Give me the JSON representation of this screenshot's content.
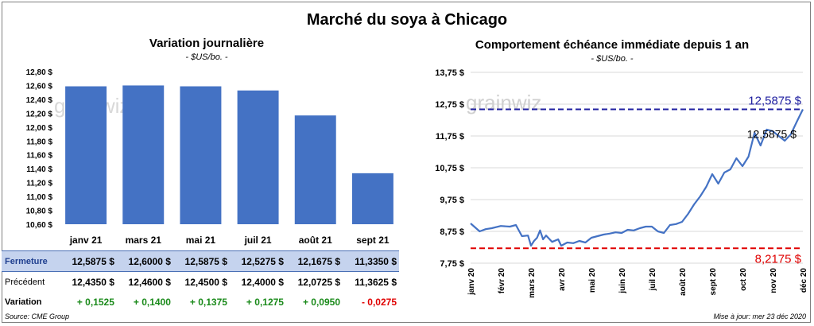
{
  "main_title": "Marché du soya à Chicago",
  "left_chart": {
    "title": "Variation  journalière",
    "subtitle": "- $US/bo. -",
    "watermark": "grainwiz"
  },
  "right_chart": {
    "title": "Comportement  échéance immédiate depuis 1 an",
    "subtitle": "- $US/bo. -",
    "watermark": "grainwiz"
  },
  "table": {
    "rows": [
      {
        "label": "Fermeture",
        "values": [
          "12,5875 $",
          "12,6000 $",
          "12,5875 $",
          "12,5275 $",
          "12,1675 $",
          "11,3350 $"
        ]
      },
      {
        "label": "Précédent",
        "values": [
          "12,4350 $",
          "12,4600 $",
          "12,4500 $",
          "12,4000 $",
          "12,0725 $",
          "11,3625 $"
        ]
      },
      {
        "label": "Variation",
        "values": [
          "+ 0,1525",
          "+ 0,1400",
          "+ 0,1375",
          "+ 0,1275",
          "+ 0,0950",
          "- 0,0275"
        ],
        "signs": [
          "pos",
          "pos",
          "pos",
          "pos",
          "pos",
          "neg"
        ]
      }
    ]
  },
  "footer": {
    "source": "Source: CME Group",
    "updated": "Mise à jour: mer 23 déc 2020"
  },
  "colors": {
    "bar": "#4472c4",
    "line": "#4472c4",
    "high_line": "#1f1fa0",
    "low_line": "#e00000",
    "positive": "#1a8a1a",
    "negative": "#e00000"
  },
  "chart_data": [
    {
      "type": "bar",
      "title": "Variation  journalière",
      "subtitle": "- $US/bo. -",
      "categories": [
        "janv 21",
        "mars 21",
        "mai 21",
        "juil 21",
        "août 21",
        "sept 21"
      ],
      "values": [
        12.5875,
        12.6,
        12.5875,
        12.5275,
        12.1675,
        11.335
      ],
      "ylim": [
        10.6,
        12.8
      ],
      "yticks": [
        10.6,
        10.8,
        11.0,
        11.2,
        11.4,
        11.6,
        11.8,
        12.0,
        12.2,
        12.4,
        12.6,
        12.8
      ],
      "ytick_labels": [
        "10,60 $",
        "10,80 $",
        "11,00 $",
        "11,20 $",
        "11,40 $",
        "11,60 $",
        "11,80 $",
        "12,00 $",
        "12,20 $",
        "12,40 $",
        "12,60 $",
        "12,80 $"
      ],
      "grid": false
    },
    {
      "type": "line",
      "title": "Comportement  échéance immédiate depuis 1 an",
      "subtitle": "- $US/bo. -",
      "x_labels": [
        "janv 20",
        "févr 20",
        "mars 20",
        "avr 20",
        "mai 20",
        "juin 20",
        "juil 20",
        "août 20",
        "sept 20",
        "oct 20",
        "nov 20",
        "déc 20"
      ],
      "ylim": [
        7.75,
        13.75
      ],
      "yticks": [
        7.75,
        8.75,
        9.75,
        10.75,
        11.75,
        12.75,
        13.75
      ],
      "ytick_labels": [
        "7,75 $",
        "8,75 $",
        "9,75 $",
        "10,75 $",
        "11,75 $",
        "12,75 $",
        "13,75 $"
      ],
      "high": {
        "value": 12.5875,
        "label": "12,5875 $"
      },
      "low": {
        "value": 8.2175,
        "label": "8,2175 $"
      },
      "last": {
        "value": 12.5875,
        "label": "12,5875 $"
      },
      "series": [
        {
          "x": [
            0,
            0.3,
            0.5,
            0.7,
            1.0,
            1.3,
            1.5,
            1.7,
            1.9,
            2.0,
            2.1,
            2.2,
            2.3,
            2.4,
            2.5,
            2.7,
            2.9,
            3.0,
            3.2,
            3.4,
            3.6,
            3.8,
            4.0,
            4.2,
            4.4,
            4.6,
            4.8,
            5.0,
            5.2,
            5.4,
            5.6,
            5.8,
            6.0,
            6.2,
            6.4,
            6.6,
            6.8,
            7.0,
            7.2,
            7.4,
            7.6,
            7.8,
            8.0,
            8.2,
            8.4,
            8.6,
            8.8,
            9.0,
            9.2,
            9.4,
            9.6,
            9.8,
            10.0,
            10.2,
            10.4,
            10.6,
            10.8,
            11.0
          ],
          "values": [
            9.0,
            8.75,
            8.82,
            8.85,
            8.92,
            8.9,
            8.95,
            8.6,
            8.62,
            8.3,
            8.45,
            8.55,
            8.78,
            8.5,
            8.62,
            8.42,
            8.5,
            8.3,
            8.4,
            8.38,
            8.45,
            8.4,
            8.55,
            8.6,
            8.65,
            8.68,
            8.72,
            8.7,
            8.8,
            8.78,
            8.85,
            8.9,
            8.9,
            8.75,
            8.7,
            8.95,
            8.98,
            9.05,
            9.3,
            9.6,
            9.85,
            10.15,
            10.55,
            10.25,
            10.6,
            10.7,
            11.05,
            10.8,
            11.1,
            11.85,
            11.45,
            11.95,
            11.9,
            11.75,
            11.6,
            11.8,
            12.2,
            12.5875
          ]
        }
      ]
    }
  ]
}
